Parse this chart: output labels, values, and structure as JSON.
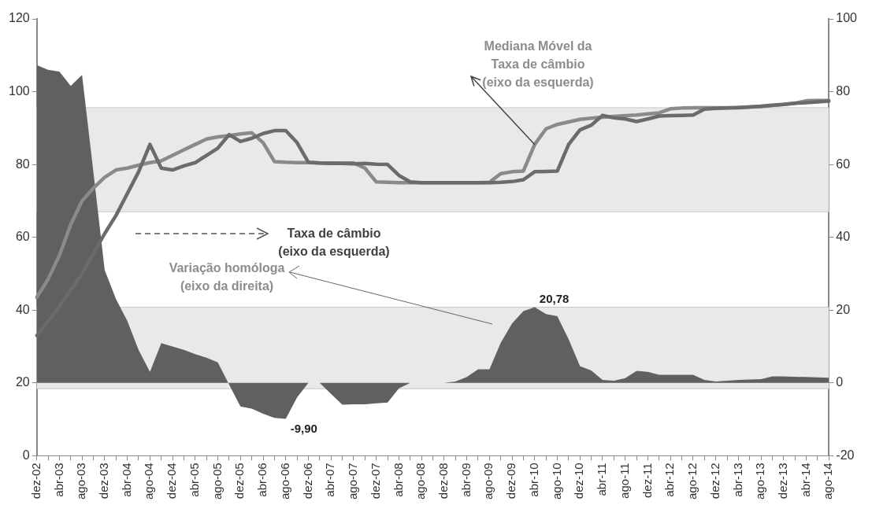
{
  "chart_data": {
    "type": "line",
    "categories": [
      "dez-02",
      null,
      "abr-03",
      null,
      "ago-03",
      null,
      "dez-03",
      null,
      "abr-04",
      null,
      "ago-04",
      null,
      "dez-04",
      null,
      "abr-05",
      null,
      "ago-05",
      null,
      "dez-05",
      null,
      "abr-06",
      null,
      "ago-06",
      null,
      "dez-06",
      null,
      "abr-07",
      null,
      "ago-07",
      null,
      "dez-07",
      null,
      "abr-08",
      null,
      "ago-08",
      null,
      "dez-08",
      null,
      "abr-09",
      null,
      "ago-09",
      null,
      "dez-09",
      null,
      "abr-10",
      null,
      "ago-10",
      null,
      "dez-10",
      null,
      "abr-11",
      null,
      "ago-11",
      null,
      "dez-11",
      null,
      "abr-12",
      null,
      "ago-12",
      null,
      "dez-12",
      null,
      "abr-13",
      null,
      "ago-13",
      null,
      "dez-13",
      null,
      "abr-14",
      null,
      "ago-14"
    ],
    "series": [
      {
        "type": "line",
        "color": "#6b6b6b",
        "values": [
          33,
          37,
          41,
          45.5,
          50,
          55.5,
          61,
          66,
          72,
          78,
          85.5,
          79,
          78.5,
          79.6,
          80.5,
          82.5,
          84.5,
          88.2,
          86.3,
          87.2,
          88.5,
          89.3,
          89.3,
          86,
          80.6,
          80.4,
          80.3,
          80.3,
          80.2,
          80.3,
          80.1,
          80,
          77,
          75.2,
          75,
          75,
          75,
          75,
          75,
          75,
          75,
          75.1,
          75.3,
          75.8,
          78,
          78.1,
          78.2,
          85.5,
          89.5,
          90.8,
          93.5,
          92.8,
          92.5,
          91.8,
          92.5,
          93.3,
          93.4,
          93.5,
          93.6,
          95.2,
          95.4,
          95.5,
          95.6,
          95.8,
          96,
          96.3,
          96.5,
          96.8,
          97,
          97.2,
          97.4
        ]
      },
      {
        "type": "line",
        "color": "#8a8a8a",
        "values": [
          43.5,
          48.5,
          55,
          63.5,
          70,
          73.5,
          76.5,
          78.5,
          79,
          79.8,
          80.5,
          81,
          82.5,
          84,
          85.5,
          87,
          87.6,
          87.9,
          88.4,
          88.7,
          86,
          80.8,
          80.6,
          80.5,
          80.5,
          80.4,
          80.4,
          80.4,
          80.4,
          79,
          75.2,
          75.1,
          75,
          75,
          75,
          75,
          75,
          75,
          75,
          75,
          75.1,
          77.5,
          78,
          78.2,
          85.5,
          89.8,
          91,
          91.7,
          92.4,
          92.7,
          93,
          93.2,
          93.4,
          93.6,
          93.9,
          94.2,
          95.3,
          95.5,
          95.6,
          95.6,
          95.6,
          95.6,
          95.7,
          95.8,
          95.9,
          96.2,
          96.5,
          96.8,
          97.5,
          97.6,
          97.6
        ]
      },
      {
        "type": "area",
        "axis": "y2",
        "color": "#606060",
        "values": [
          87.3,
          86,
          85.5,
          81.6,
          84.6,
          58,
          31,
          23,
          17,
          9,
          3,
          10.9,
          10,
          9.1,
          7.9,
          6.9,
          5.6,
          -0.5,
          -6.5,
          -7.1,
          -8.5,
          -9.6,
          -9.9,
          -4,
          0,
          0,
          -3,
          -6,
          -5.9,
          -5.9,
          -5.6,
          -5.4,
          -1.5,
          0,
          0,
          0,
          0,
          0.4,
          1.6,
          3.7,
          3.7,
          11,
          16.3,
          19.7,
          20.78,
          18.9,
          18.3,
          12,
          4.6,
          3.4,
          0.8,
          0.6,
          1.3,
          3.3,
          3,
          2.2,
          2.2,
          2.2,
          2.2,
          0.8,
          0.4,
          0.6,
          0.8,
          0.9,
          1,
          1.8,
          1.8,
          1.7,
          1.6,
          1.5,
          1.4
        ],
        "value_labels": [
          null,
          null,
          null,
          null,
          null,
          null,
          null,
          null,
          null,
          null,
          null,
          null,
          null,
          null,
          null,
          null,
          null,
          null,
          null,
          null,
          null,
          null,
          "-9,90",
          null,
          null,
          null,
          null,
          null,
          null,
          null,
          null,
          null,
          null,
          null,
          null,
          null,
          null,
          null,
          null,
          null,
          null,
          null,
          null,
          null,
          "20,78",
          null,
          null,
          null,
          null,
          null,
          null,
          null,
          null,
          null,
          null,
          null,
          null,
          null,
          null,
          null,
          null,
          null,
          null,
          null,
          null,
          null,
          null,
          null,
          null,
          null,
          null
        ]
      }
    ],
    "ylim": [
      0,
      120
    ],
    "yticks": [
      0,
      20,
      40,
      60,
      80,
      100,
      120
    ],
    "y2lim": [
      -20,
      100
    ],
    "y2ticks": [
      -20,
      0,
      20,
      40,
      60,
      80,
      100
    ],
    "bands": [
      {
        "axis": "y",
        "from": 67,
        "to": 95.6,
        "color": "#e9e9e9"
      },
      {
        "axis": "y2",
        "from": -1.6,
        "to": 20.8,
        "color": "#e9e9e9"
      }
    ],
    "annotations": [
      {
        "text": "Mediana Móvel da\nTaxa de câmbio\n(eixo da esquerda)",
        "x": "abr-10",
        "y": 85.5
      },
      "Taxa de câmbio\n(eixo da esquerda)",
      "Variação homóloga\n(eixo da direita)"
    ],
    "grid": false,
    "legend": false
  }
}
